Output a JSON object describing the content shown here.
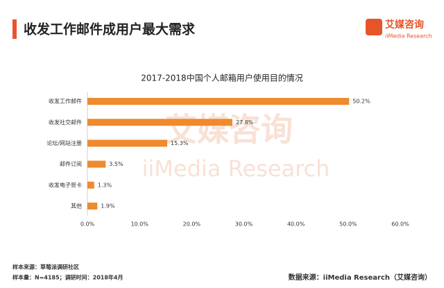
{
  "header": {
    "title": "收发工作邮件成用户最大需求",
    "logo_cn": "艾媒咨询",
    "logo_en": "iiMedia Research"
  },
  "watermark": {
    "cn": "艾媒咨询",
    "en": "iiMedia Research"
  },
  "chart_data": {
    "type": "bar",
    "orientation": "horizontal",
    "title": "2017-2018中国个人邮箱用户使用目的情况",
    "categories": [
      "收发工作邮件",
      "收发社交邮件",
      "论坛/网站注册",
      "邮件订阅",
      "收发电子贺卡",
      "其他"
    ],
    "values": [
      50.2,
      27.8,
      15.3,
      3.5,
      1.3,
      1.9
    ],
    "value_labels": [
      "50.2%",
      "27.8%",
      "15.3%",
      "3.5%",
      "1.3%",
      "1.9%"
    ],
    "color": "#ef8a2e",
    "xlim": [
      0,
      60
    ],
    "xticks": [
      {
        "value": 0,
        "label": "0.0%"
      },
      {
        "value": 10,
        "label": "10.0%"
      },
      {
        "value": 20,
        "label": "20.0%"
      },
      {
        "value": 30,
        "label": "30.0%"
      },
      {
        "value": 40,
        "label": "40.0%"
      },
      {
        "value": 50,
        "label": "50.0%"
      },
      {
        "value": 60,
        "label": "60.0%"
      }
    ],
    "grid": false
  },
  "footer": {
    "sample_source": "样本来源：草莓派调研社区",
    "sample_size": "样本量：N=4185；调研时间：2018年4月",
    "data_source": "数据来源：iiMedia Research（艾媒咨询）"
  }
}
